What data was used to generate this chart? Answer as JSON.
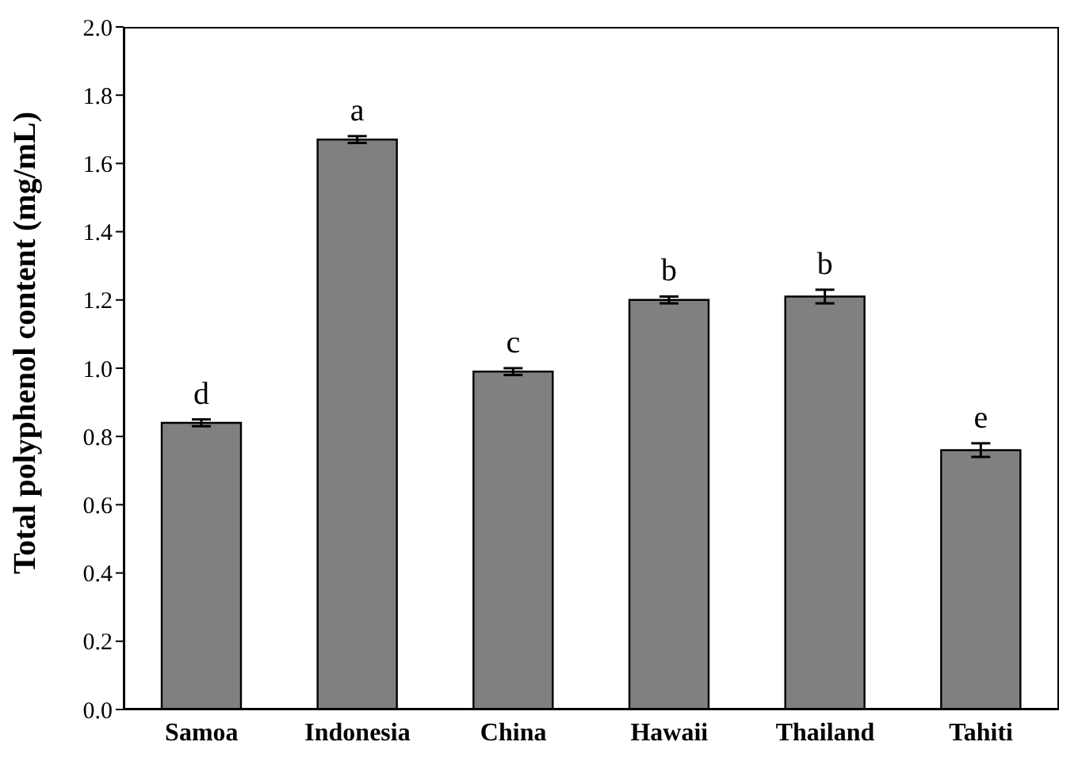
{
  "chart_data": {
    "type": "bar",
    "ylabel": "Total polyphenol content (mg/mL)",
    "categories": [
      "Samoa",
      "Indonesia",
      "China",
      "Hawaii",
      "Thailand",
      "Tahiti"
    ],
    "values": [
      0.84,
      1.67,
      0.99,
      1.2,
      1.21,
      0.76
    ],
    "errors": [
      0.01,
      0.01,
      0.01,
      0.01,
      0.02,
      0.02
    ],
    "value_labels": [
      "d",
      "a",
      "c",
      "b",
      "b",
      "e"
    ],
    "color": "#808080",
    "ylim": [
      0,
      2
    ],
    "yticks": [
      {
        "value": 0,
        "label": "0.0"
      },
      0.2,
      0.4,
      0.6,
      0.8,
      {
        "value": 1,
        "label": "1.0"
      },
      1.2,
      1.4,
      1.6,
      1.8,
      {
        "value": 2,
        "label": "2.0"
      }
    ],
    "grid": false,
    "legend": false
  }
}
